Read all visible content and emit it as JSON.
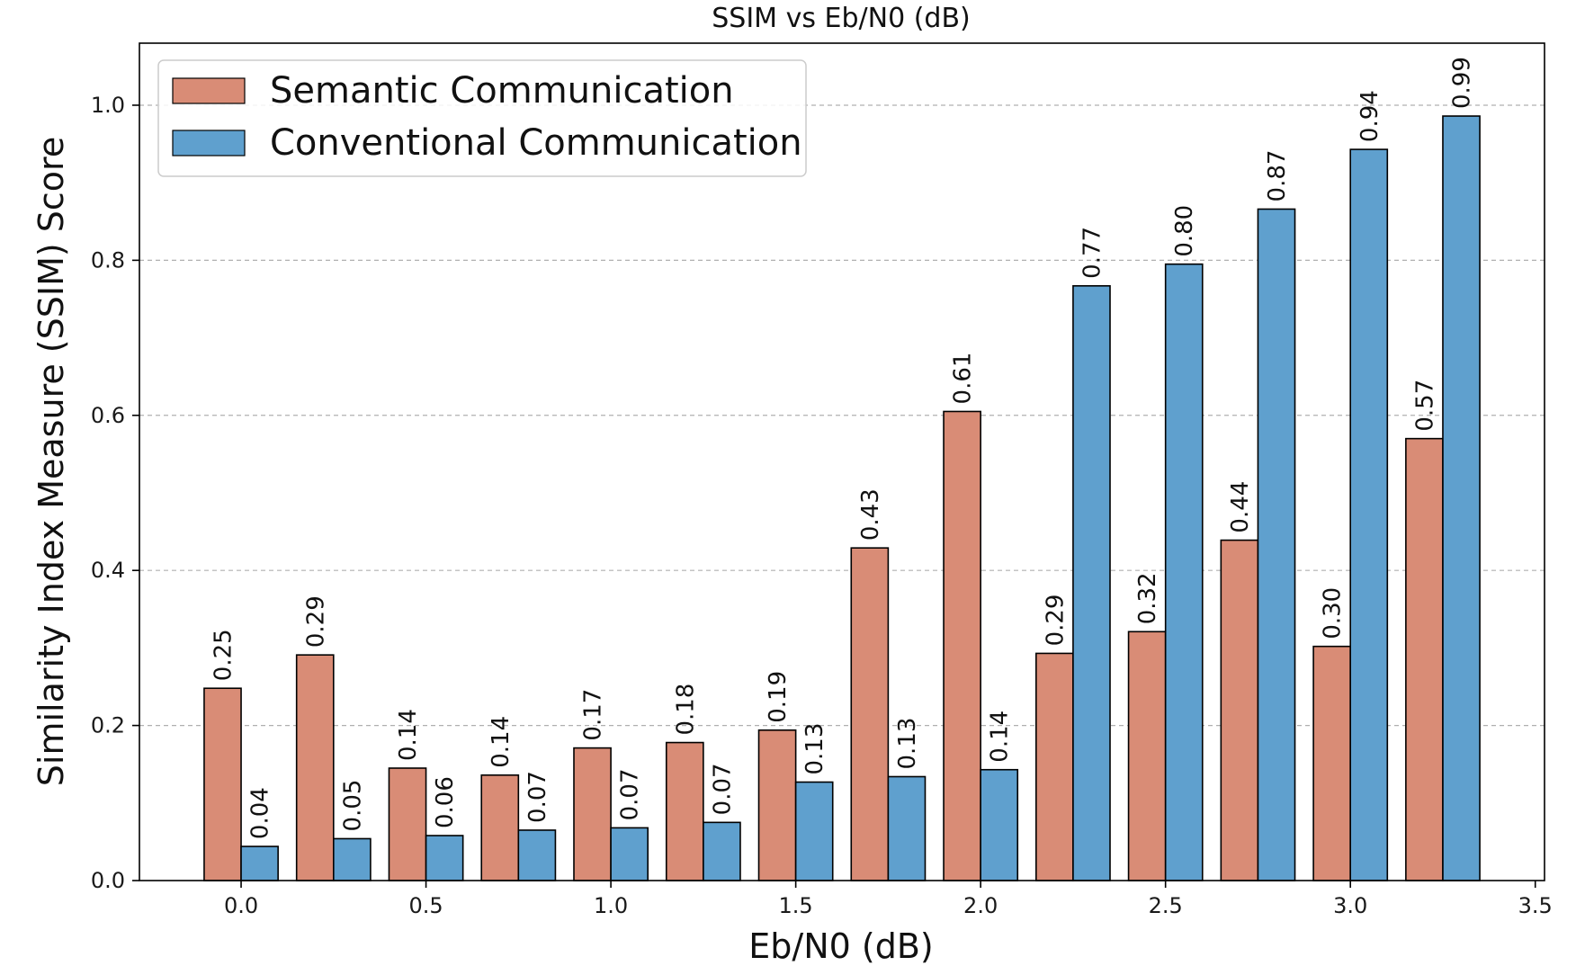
{
  "chart_data": {
    "type": "bar",
    "title": "SSIM vs Eb/N0 (dB)",
    "xlabel": "Eb/N0 (dB)",
    "ylabel": "Similarity Index Measure (SSIM) Score",
    "x": [
      0.0,
      0.25,
      0.5,
      0.75,
      1.0,
      1.25,
      1.5,
      1.75,
      2.0,
      2.25,
      2.5,
      2.75,
      3.0,
      3.25
    ],
    "xlim": [
      -0.275,
      3.525
    ],
    "ylim": [
      0,
      1.08
    ],
    "xticks": [
      0.0,
      0.5,
      1.0,
      1.5,
      2.0,
      2.5,
      3.0,
      3.5
    ],
    "xtick_labels": [
      "0.0",
      "0.5",
      "1.0",
      "1.5",
      "2.0",
      "2.5",
      "3.0",
      "3.5"
    ],
    "yticks": [
      0.0,
      0.2,
      0.4,
      0.6,
      0.8,
      1.0
    ],
    "ytick_labels": [
      "0.0",
      "0.2",
      "0.4",
      "0.6",
      "0.8",
      "1.0"
    ],
    "grid": "y-dashed",
    "legend_position": "top-left",
    "series": [
      {
        "name": "Semantic Communication",
        "color": "#d98c76",
        "values": [
          0.248,
          0.291,
          0.145,
          0.136,
          0.171,
          0.178,
          0.194,
          0.429,
          0.605,
          0.293,
          0.321,
          0.439,
          0.302,
          0.57
        ],
        "labels": [
          "0.25",
          "0.29",
          "0.14",
          "0.14",
          "0.17",
          "0.18",
          "0.19",
          "0.43",
          "0.61",
          "0.29",
          "0.32",
          "0.44",
          "0.30",
          "0.57"
        ]
      },
      {
        "name": "Conventional Communication",
        "color": "#5fa0ce",
        "values": [
          0.044,
          0.054,
          0.058,
          0.065,
          0.068,
          0.075,
          0.127,
          0.134,
          0.143,
          0.767,
          0.795,
          0.866,
          0.943,
          0.986
        ],
        "labels": [
          "0.04",
          "0.05",
          "0.06",
          "0.07",
          "0.07",
          "0.07",
          "0.13",
          "0.13",
          "0.14",
          "0.77",
          "0.80",
          "0.87",
          "0.94",
          "0.99"
        ]
      }
    ]
  }
}
